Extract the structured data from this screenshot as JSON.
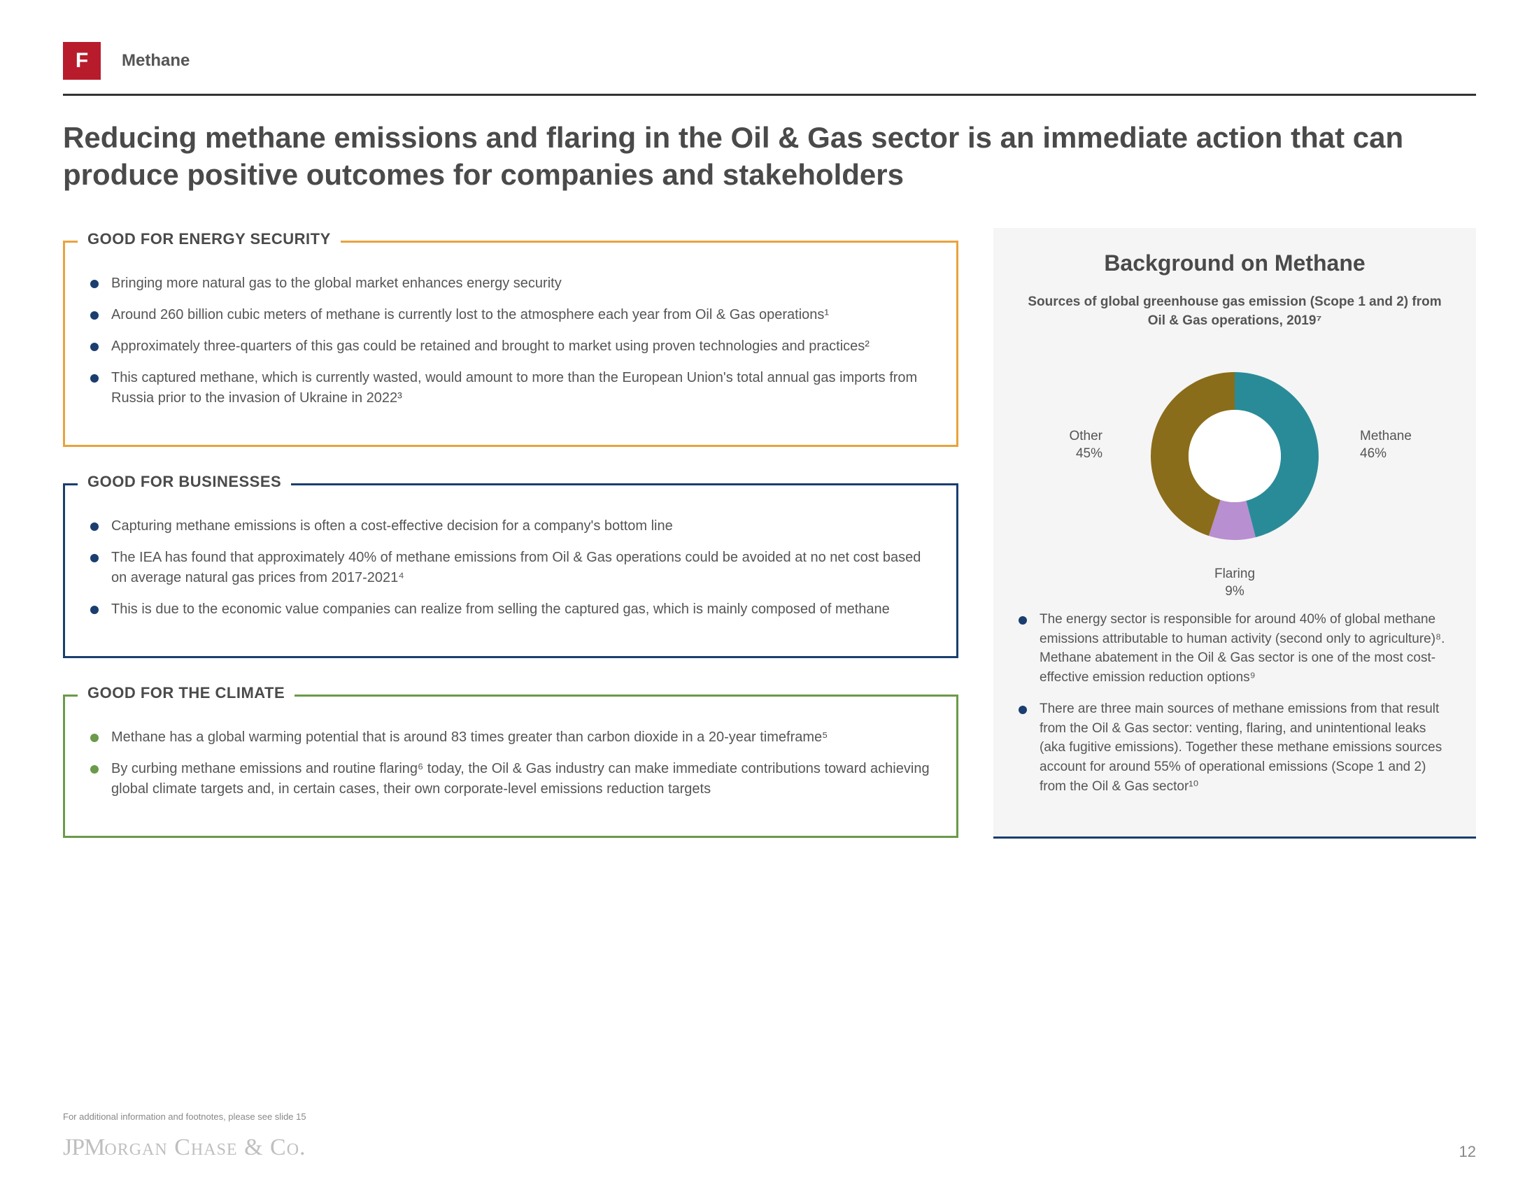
{
  "badge_letter": "F",
  "section_label": "Methane",
  "main_title": "Reducing methane emissions and flaring in the Oil & Gas sector is an immediate action that can produce positive outcomes for companies and stakeholders",
  "boxes": {
    "energy": {
      "title": "GOOD FOR ENERGY SECURITY",
      "border_color": "#e8a33d",
      "items": [
        "Bringing more natural gas to the global market enhances energy security",
        "Around 260 billion cubic meters of methane is currently lost to the atmosphere each year from Oil & Gas operations¹",
        "Approximately three-quarters of this gas could be retained and brought to market using proven technologies and practices²",
        "This captured methane, which is currently wasted, would amount to more than the European Union's total annual gas imports from Russia prior to the invasion of Ukraine in 2022³"
      ]
    },
    "business": {
      "title": "GOOD FOR BUSINESSES",
      "border_color": "#1a3e6f",
      "items": [
        "Capturing methane emissions is often a cost-effective decision for a company's bottom line",
        "The IEA has found that approximately 40% of methane emissions from Oil & Gas operations could be avoided at no net cost based on average natural gas prices from 2017-2021⁴",
        "This is due to the economic value companies can realize from selling the captured gas, which is mainly composed of methane"
      ]
    },
    "climate": {
      "title": "GOOD FOR THE CLIMATE",
      "border_color": "#6a9a4a",
      "items": [
        "Methane has a global warming potential that is around 83 times greater than carbon dioxide in a 20-year timeframe⁵",
        "By curbing methane emissions and routine flaring⁶ today, the Oil & Gas industry can make immediate contributions toward achieving global climate targets and, in certain cases, their own corporate-level emissions reduction targets"
      ]
    }
  },
  "sidebar": {
    "title": "Background on Methane",
    "subtitle": "Sources of global greenhouse gas emission (Scope 1 and 2) from Oil & Gas operations, 2019⁷",
    "donut": {
      "type": "donut",
      "inner_radius_ratio": 0.55,
      "background_color": "#f5f5f5",
      "slices": [
        {
          "label": "Methane",
          "value": 46,
          "color": "#2a8b98"
        },
        {
          "label": "Flaring",
          "value": 9,
          "color": "#b88fd0"
        },
        {
          "label": "Other",
          "value": 45,
          "color": "#8a6d1a"
        }
      ]
    },
    "bullets": [
      "The energy sector is responsible for around 40% of global methane emissions attributable to human activity (second only to agriculture)⁸. Methane abatement in the Oil & Gas sector is one of the most cost-effective emission reduction options⁹",
      "There are three main sources of methane emissions from that result from the Oil & Gas sector: venting, flaring, and unintentional leaks (aka fugitive emissions). Together these methane emissions sources account for around 55% of operational emissions (Scope 1 and 2) from the Oil & Gas sector¹⁰"
    ]
  },
  "footnote": "For additional information and footnotes, please see slide 15",
  "brand": "JPMORGAN CHASE & CO.",
  "page_number": "12"
}
